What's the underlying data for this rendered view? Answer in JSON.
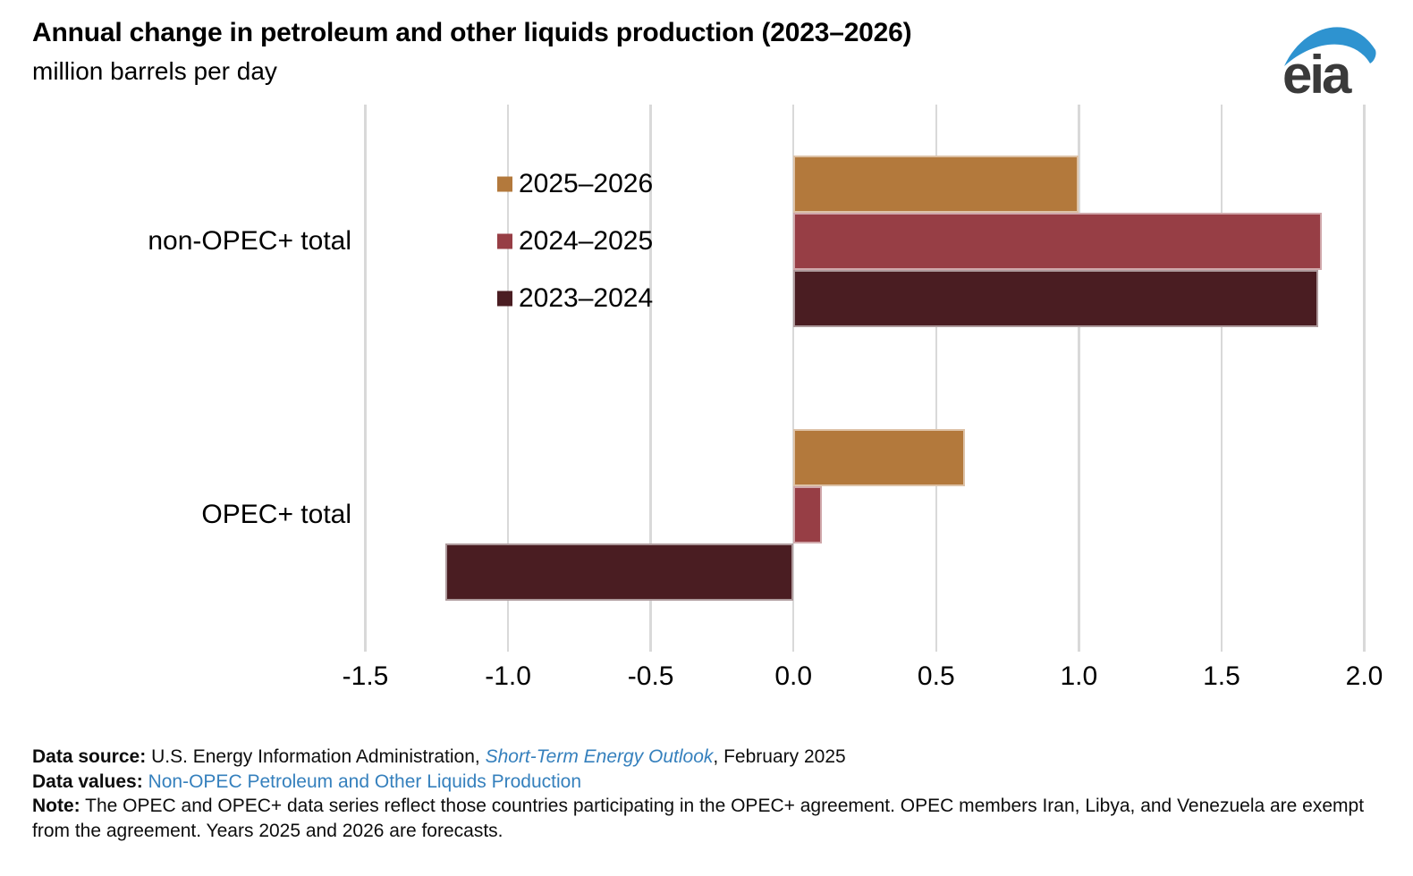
{
  "header": {
    "title": "Annual change in petroleum and other liquids production (2023–2026)",
    "subtitle": "million barrels per day",
    "logo_text": "eia"
  },
  "chart_data": {
    "type": "bar",
    "orientation": "horizontal",
    "title": "Annual change in petroleum and other liquids production (2023–2026)",
    "units": "million barrels per day",
    "categories": [
      "non-OPEC+ total",
      "OPEC+ total"
    ],
    "series": [
      {
        "name": "2025–2026",
        "color": "#b3793c",
        "values": [
          1.0,
          0.6
        ]
      },
      {
        "name": "2024–2025",
        "color": "#973e45",
        "values": [
          1.85,
          0.1
        ]
      },
      {
        "name": "2023–2024",
        "color": "#4a1d22",
        "values": [
          1.84,
          -1.22
        ]
      }
    ],
    "xlim": [
      -1.5,
      2.0
    ],
    "x_ticks": [
      -1.5,
      -1.0,
      -0.5,
      0.0,
      0.5,
      1.0,
      1.5,
      2.0
    ],
    "x_tick_labels": [
      "-1.5",
      "-1.0",
      "-0.5",
      "0.0",
      "0.5",
      "1.0",
      "1.5",
      "2.0"
    ],
    "grid": true,
    "legend_position": "inside-left-top"
  },
  "footer": {
    "data_source_label": "Data source:",
    "data_source_text": "U.S. Energy Information Administration,",
    "data_source_link": "Short-Term Energy Outlook",
    "data_source_suffix": ", February 2025",
    "data_values_label": "Data values:",
    "data_values_link": "Non-OPEC Petroleum and Other Liquids Production",
    "note_label": "Note:",
    "note_text": "The OPEC and OPEC+ data series reflect those countries participating in the OPEC+ agreement. OPEC members Iran, Libya, and Venezuela are exempt from the agreement. Years 2025 and 2026 are forecasts."
  },
  "colors": {
    "grid": "#d9d9d9",
    "link_blue": "#3580bd",
    "logo_blue": "#2e93d0",
    "logo_text": "#3a3a3a"
  }
}
